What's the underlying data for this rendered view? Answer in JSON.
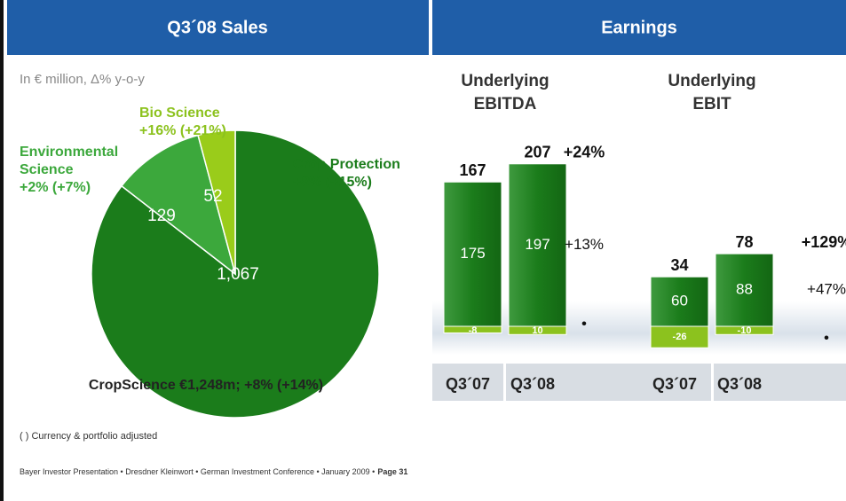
{
  "header": {
    "left": "Q3´08 Sales",
    "right": "Earnings"
  },
  "subtitle": "In € million, Δ% y-o-y",
  "footnote": "( ) Currency & portfolio adjusted",
  "footer": {
    "text": "Bayer Investor Presentation • Dresdner Kleinwort • German Investment Conference • January 2009 •",
    "page": "Page 31"
  },
  "chart_data": [
    {
      "type": "pie",
      "labels": [
        [
          "Crop Protection",
          "+8% (+15%)"
        ],
        [
          "Environmental",
          "Science",
          "+2% (+7%)"
        ],
        [
          "Bio Science",
          "+16% (+21%)"
        ]
      ],
      "values": [
        1067,
        129,
        52
      ],
      "value_labels": [
        "1,067",
        "129",
        "52"
      ],
      "colors": [
        "#1b7c1b",
        "#3ca83c",
        "#9acc1a"
      ],
      "caption": "CropScience €1,248m; +8% (+14%)"
    },
    {
      "type": "stacked-bar",
      "title": [
        "Underlying",
        "EBITDA"
      ],
      "categories": [
        "Q3´07",
        "Q3´08"
      ],
      "totals": [
        167,
        207
      ],
      "series": [
        {
          "color": "#1b7c1b",
          "values": [
            175,
            197
          ]
        },
        {
          "color": "#8cc21e",
          "values": [
            -8,
            10
          ]
        }
      ],
      "growth": [
        "+24%",
        "+13%",
        "•"
      ]
    },
    {
      "type": "stacked-bar",
      "title": [
        "Underlying",
        "EBIT"
      ],
      "categories": [
        "Q3´07",
        "Q3´08"
      ],
      "totals": [
        34,
        78
      ],
      "series": [
        {
          "color": "#1b7c1b",
          "values": [
            60,
            88
          ]
        },
        {
          "color": "#8cc21e",
          "values": [
            -26,
            -10
          ]
        }
      ],
      "growth": [
        "+129%",
        "+47%",
        "•"
      ]
    }
  ]
}
